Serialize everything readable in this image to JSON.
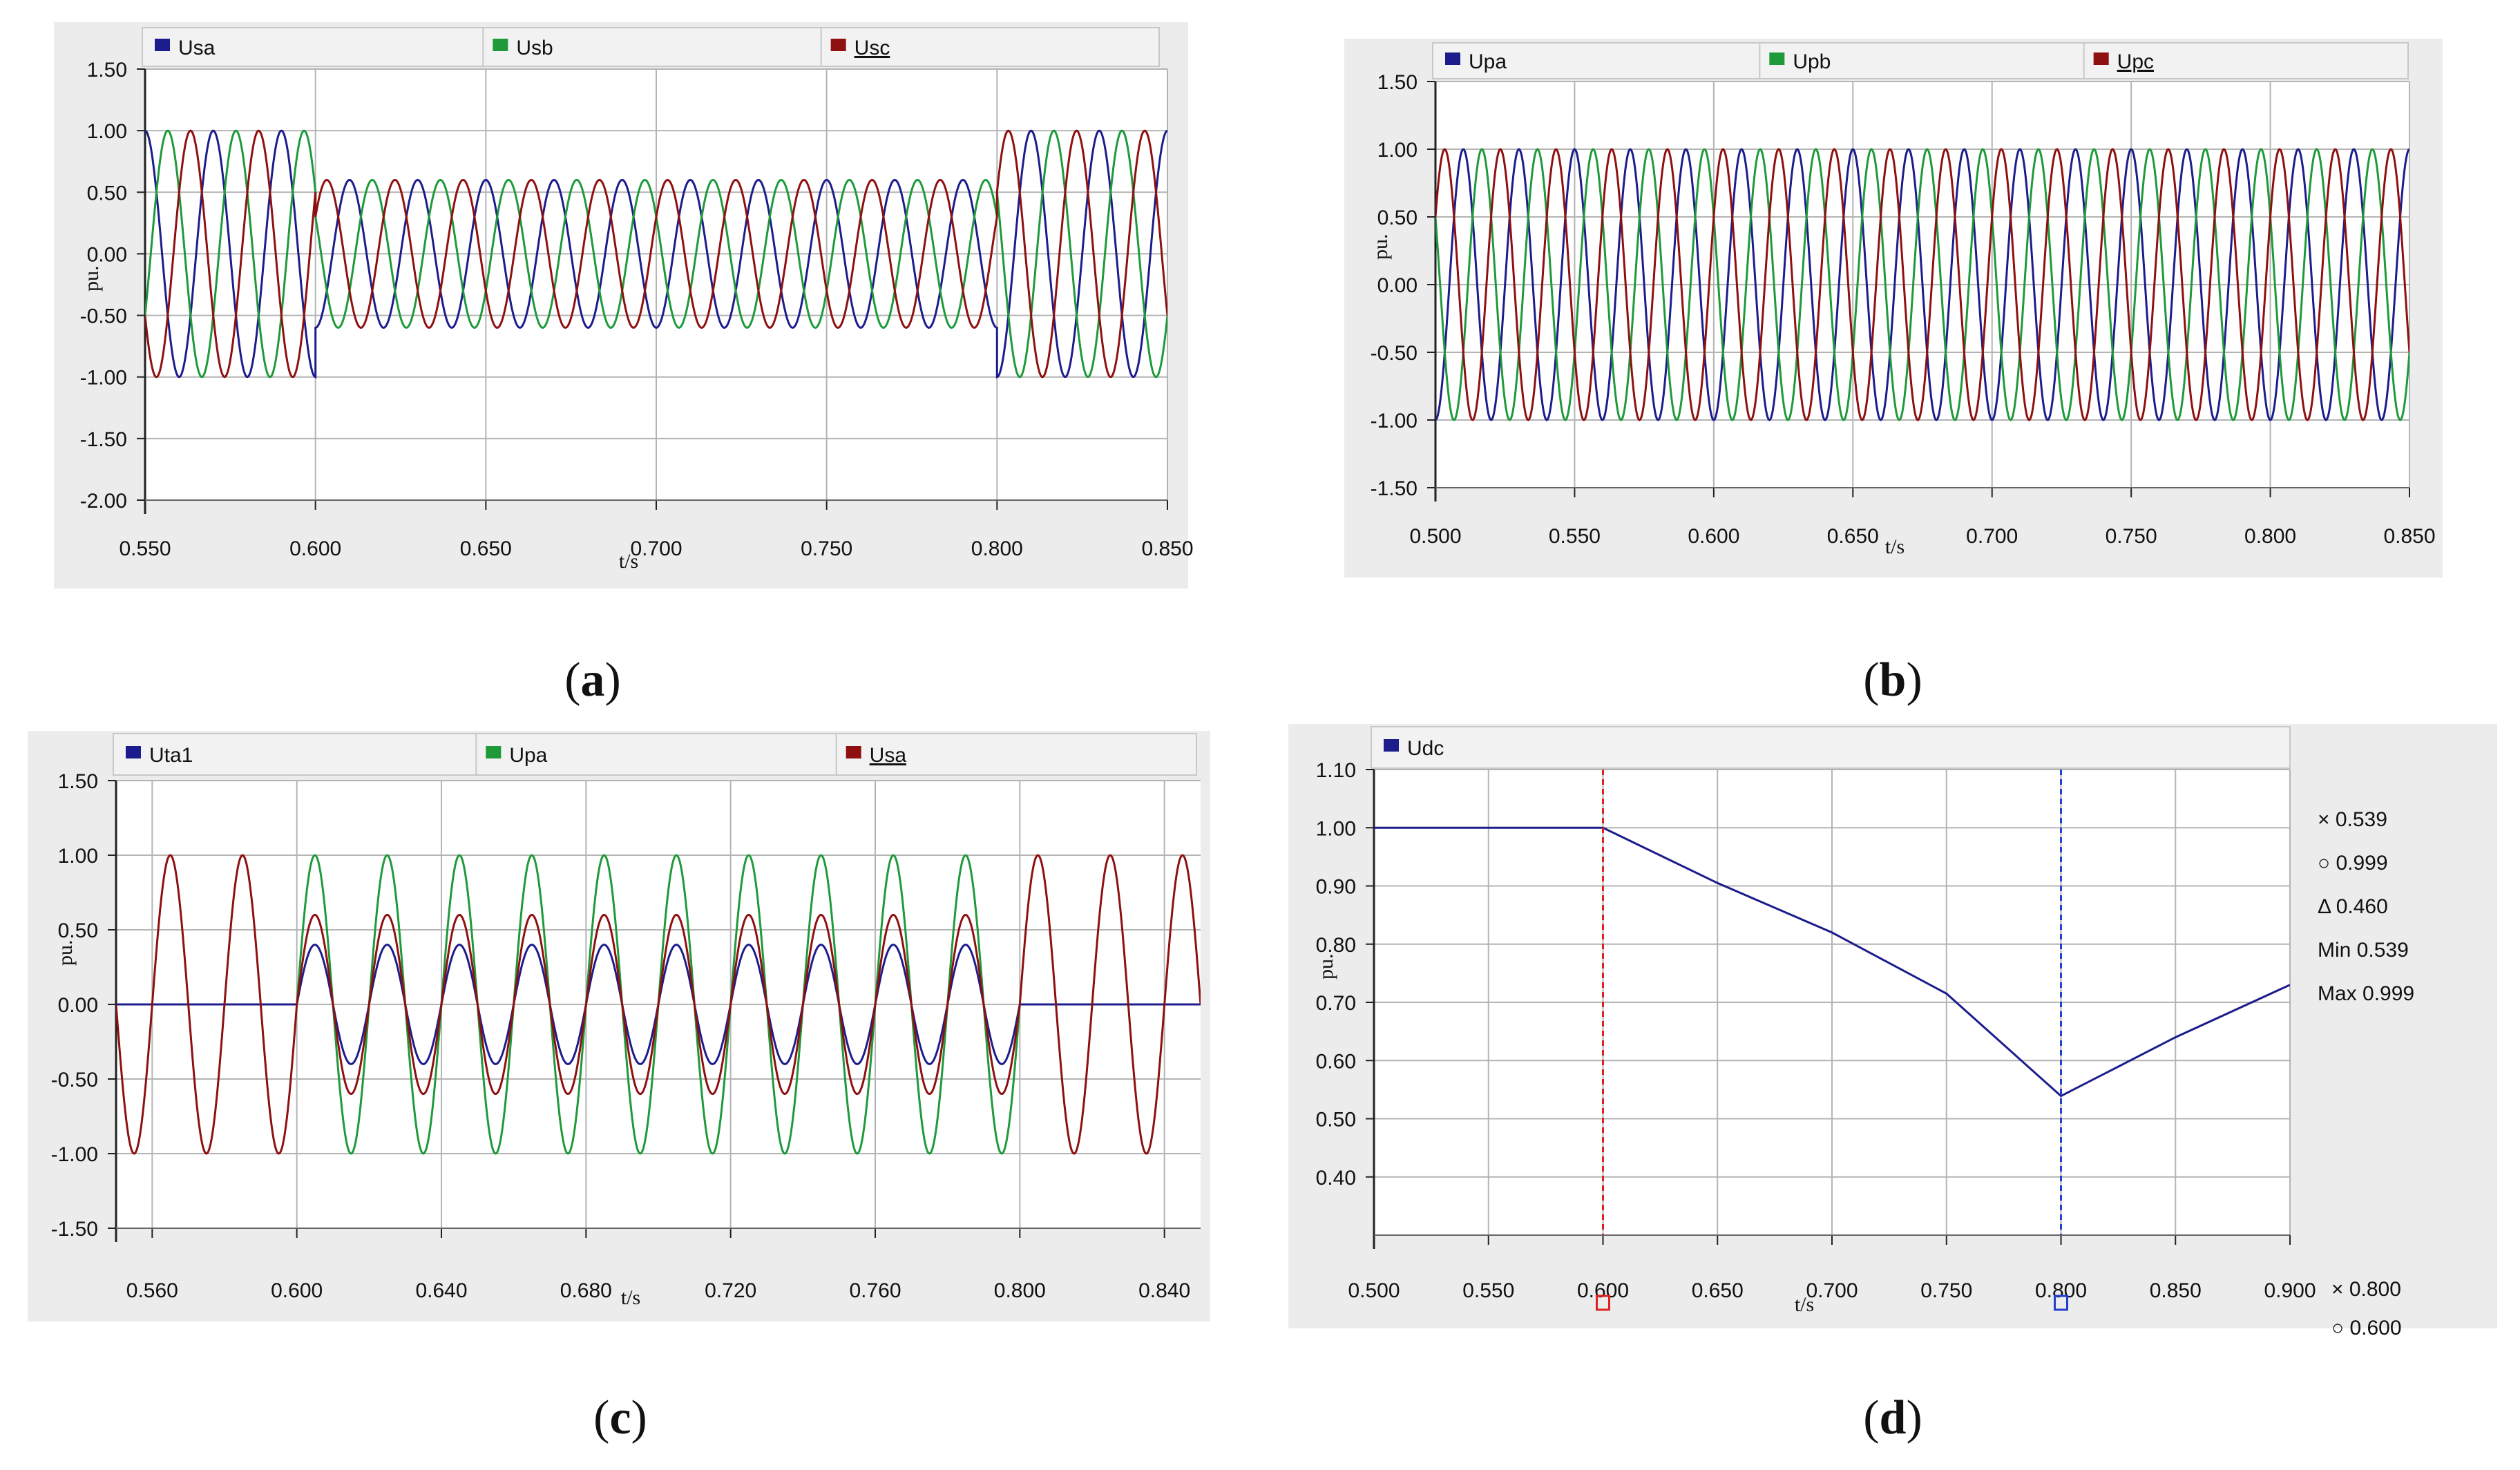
{
  "captions": [
    "(a)",
    "(b)",
    "(c)",
    "(d)"
  ],
  "caption_letters": [
    "a",
    "b",
    "c",
    "d"
  ],
  "colors": {
    "blue": "#1c1c8c",
    "green": "#1e9a3a",
    "red": "#8e1010",
    "grid": "#b4b4b4",
    "panel_bg": "#ececec",
    "legend_bg": "#f2f2f2",
    "cursor_red": "#e02020",
    "cursor_blue": "#2040d0"
  },
  "chart_data": [
    {
      "id": "a",
      "type": "line",
      "ylabel": "pu.",
      "xlabel": "t/s",
      "xlim": [
        0.55,
        0.85
      ],
      "ylim": [
        -2.0,
        1.5
      ],
      "xticks": [
        "0.550",
        "0.600",
        "0.650",
        "0.700",
        "0.750",
        "0.800",
        "0.850"
      ],
      "yticks": [
        "1.50",
        "1.00",
        "0.50",
        "0.00",
        "-0.50",
        "-1.00",
        "-1.50",
        "-2.00"
      ],
      "frequency_hz": 50,
      "series": [
        {
          "name": "Usa",
          "color": "blue",
          "phase_deg": -90,
          "segments": [
            [
              0.55,
              0.6,
              1.0
            ],
            [
              0.6,
              0.8,
              0.6
            ],
            [
              0.8,
              0.85,
              1.0
            ]
          ]
        },
        {
          "name": "Usb",
          "color": "green",
          "phase_deg": 150,
          "segments": [
            [
              0.55,
              0.6,
              1.0
            ],
            [
              0.6,
              0.8,
              0.6
            ],
            [
              0.8,
              0.85,
              1.0
            ]
          ]
        },
        {
          "name": "Usc",
          "color": "red",
          "phase_deg": 30,
          "segments": [
            [
              0.55,
              0.6,
              1.0
            ],
            [
              0.6,
              0.8,
              0.6
            ],
            [
              0.8,
              0.85,
              1.0
            ]
          ]
        }
      ]
    },
    {
      "id": "b",
      "type": "line",
      "ylabel": "pu.",
      "xlabel": "t/s",
      "xlim": [
        0.5,
        0.85
      ],
      "ylim": [
        -1.5,
        1.5
      ],
      "xticks": [
        "0.500",
        "0.550",
        "0.600",
        "0.650",
        "0.700",
        "0.750",
        "0.800",
        "0.850"
      ],
      "yticks": [
        "1.50",
        "1.00",
        "0.50",
        "0.00",
        "-0.50",
        "-1.00",
        "-1.50"
      ],
      "frequency_hz": 50,
      "series": [
        {
          "name": "Upa",
          "color": "blue",
          "phase_deg": -90,
          "segments": [
            [
              0.5,
              0.85,
              1.0
            ]
          ]
        },
        {
          "name": "Upb",
          "color": "green",
          "phase_deg": 150,
          "segments": [
            [
              0.5,
              0.85,
              1.0
            ]
          ]
        },
        {
          "name": "Upc",
          "color": "red",
          "phase_deg": 30,
          "segments": [
            [
              0.5,
              0.85,
              1.0
            ]
          ]
        }
      ]
    },
    {
      "id": "c",
      "type": "line",
      "ylabel": "pu.",
      "xlabel": "t/s",
      "xlim": [
        0.55,
        0.85
      ],
      "ylim": [
        -1.5,
        1.5
      ],
      "xticks": [
        "0.560",
        "0.600",
        "0.640",
        "0.680",
        "0.720",
        "0.760",
        "0.800",
        "0.840"
      ],
      "xtick_values": [
        0.56,
        0.6,
        0.64,
        0.68,
        0.72,
        0.76,
        0.8,
        0.84
      ],
      "yticks": [
        "1.50",
        "1.00",
        "0.50",
        "0.00",
        "-0.50",
        "-1.00",
        "-1.50"
      ],
      "frequency_hz": 50,
      "series": [
        {
          "name": "Uta1",
          "color": "blue",
          "phase_deg": 0,
          "segments": [
            [
              0.55,
              0.6,
              0.0
            ],
            [
              0.6,
              0.8,
              0.4
            ],
            [
              0.8,
              0.85,
              0.0
            ]
          ]
        },
        {
          "name": "Upa",
          "color": "green",
          "phase_deg": 0,
          "segments": [
            [
              0.6,
              0.8,
              1.0
            ]
          ]
        },
        {
          "name": "Usa",
          "color": "red",
          "phase_deg": 0,
          "segments": [
            [
              0.55,
              0.6,
              1.0
            ],
            [
              0.6,
              0.8,
              0.6
            ],
            [
              0.8,
              0.85,
              1.0
            ]
          ]
        }
      ]
    },
    {
      "id": "d",
      "type": "line",
      "ylabel": "pu.",
      "xlabel": "t/s",
      "xlim": [
        0.5,
        0.9
      ],
      "ylim": [
        0.3,
        1.1
      ],
      "xticks": [
        "0.500",
        "0.550",
        "0.600",
        "0.650",
        "0.700",
        "0.750",
        "0.800",
        "0.850",
        "0.900"
      ],
      "yticks": [
        "1.10",
        "1.00",
        "0.90",
        "0.80",
        "0.70",
        "0.60",
        "0.50",
        "0.40"
      ],
      "series": [
        {
          "name": "Udc",
          "color": "blue",
          "x": [
            0.5,
            0.6,
            0.65,
            0.7,
            0.75,
            0.8,
            0.85,
            0.9
          ],
          "y": [
            1.0,
            1.0,
            0.905,
            0.82,
            0.715,
            0.539,
            0.64,
            0.73
          ]
        }
      ],
      "cursors": [
        {
          "x": 0.6,
          "color": "cursor_red"
        },
        {
          "x": 0.8,
          "color": "cursor_blue"
        }
      ],
      "readouts": [
        "× 0.539",
        "○ 0.999",
        "Δ 0.460",
        "Min 0.539",
        "Max 0.999"
      ],
      "cursor_readouts": [
        "× 0.800",
        "○ 0.600"
      ]
    }
  ]
}
